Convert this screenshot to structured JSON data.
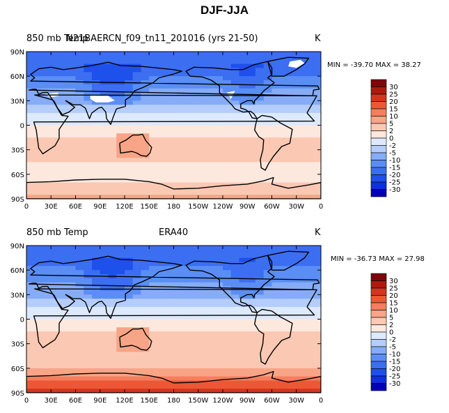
{
  "title": "DJF-JJA",
  "colors": {
    "land": "#000000",
    "missing": "#ffffff",
    "levels": [
      "#00007a",
      "#0000b4",
      "#0f2fe0",
      "#1e50ec",
      "#3c6ef2",
      "#5a8ef5",
      "#86acf7",
      "#b4cdfa",
      "#dde9fd",
      "#fde8de",
      "#fbc8b4",
      "#f8a487",
      "#f47e5e",
      "#ec5836",
      "#d4351c",
      "#ae1b0e",
      "#7e0509"
    ]
  },
  "chart_data": [
    {
      "type": "heatmap",
      "variable": "850 mb Temp",
      "left_label": "850 mb Temp",
      "case_label": "N21BAERCN_f09_tn11_201016 (yrs 21-50)",
      "units": "K",
      "min_label": "MIN = -39.70",
      "max_label": "MAX =  38.27",
      "min": -39.7,
      "max": 38.27,
      "xlabel": "",
      "ylabel": "",
      "xlim": [
        0,
        360
      ],
      "ylim": [
        -90,
        90
      ],
      "xticks": [
        "0",
        "30E",
        "60E",
        "90E",
        "120E",
        "150E",
        "180",
        "150W",
        "120W",
        "90W",
        "60W",
        "30W",
        "0"
      ],
      "yticks": [
        "90N",
        "60N",
        "30N",
        "0",
        "30S",
        "60S",
        "90S"
      ],
      "colorbar_levels": [
        "30",
        "25",
        "20",
        "15",
        "10",
        "5",
        "2",
        "0",
        "-2",
        "-5",
        "-10",
        "-15",
        "-20",
        "-25",
        "-30"
      ],
      "zonal_profile": {
        "lat": [
          90,
          75,
          60,
          45,
          30,
          15,
          0,
          -15,
          -30,
          -45,
          -60,
          -75,
          -90
        ],
        "value": [
          -20,
          -17,
          -15,
          -10,
          -6,
          -2,
          0,
          2,
          3,
          2,
          1,
          3,
          6
        ]
      }
    },
    {
      "type": "heatmap",
      "variable": "850 mb Temp",
      "left_label": "850 mb Temp",
      "case_label": "ERA40",
      "units": "K",
      "min_label": "MIN = -36.73",
      "max_label": "MAX =  27.98",
      "min": -36.73,
      "max": 27.98,
      "xlabel": "",
      "ylabel": "",
      "xlim": [
        0,
        360
      ],
      "ylim": [
        -90,
        90
      ],
      "xticks": [
        "0",
        "30E",
        "60E",
        "90E",
        "120E",
        "150E",
        "180",
        "150W",
        "120W",
        "90W",
        "60W",
        "30W",
        "0"
      ],
      "yticks": [
        "90N",
        "60N",
        "30N",
        "0",
        "30S",
        "60S",
        "90S"
      ],
      "colorbar_levels": [
        "30",
        "25",
        "20",
        "15",
        "10",
        "5",
        "2",
        "0",
        "-2",
        "-5",
        "-10",
        "-15",
        "-20",
        "-25",
        "-30"
      ],
      "zonal_profile": {
        "lat": [
          90,
          75,
          60,
          45,
          30,
          15,
          0,
          -15,
          -30,
          -45,
          -60,
          -75,
          -90
        ],
        "value": [
          -18,
          -16,
          -14,
          -10,
          -6,
          -2,
          0,
          2,
          3,
          2,
          4,
          14,
          22
        ]
      }
    }
  ]
}
